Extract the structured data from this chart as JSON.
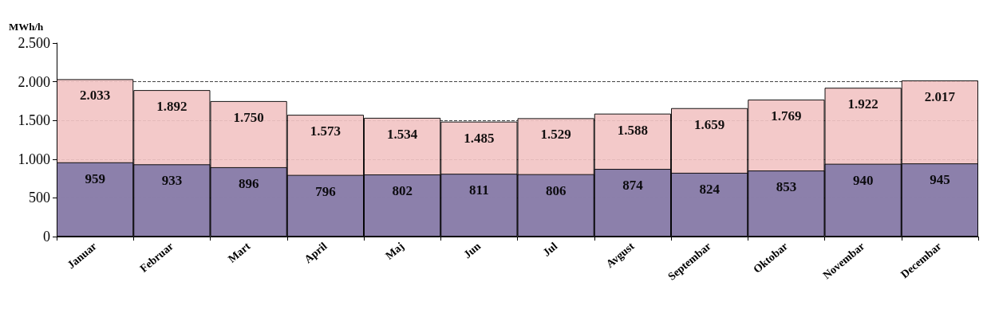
{
  "chart_data": {
    "type": "bar",
    "ylabel": "MWh/h",
    "categories": [
      "Januar",
      "Februar",
      "Mart",
      "April",
      "Maj",
      "Jun",
      "Jul",
      "Avgust",
      "Septembar",
      "Oktobar",
      "Novembar",
      "Decembar"
    ],
    "series": [
      {
        "color": "#f2c4c4",
        "values": [
          2033,
          1892,
          1750,
          1573,
          1534,
          1485,
          1529,
          1588,
          1659,
          1769,
          1922,
          2017
        ],
        "value_labels": [
          "2.033",
          "1.892",
          "1.750",
          "1.573",
          "1.534",
          "1.485",
          "1.529",
          "1.588",
          "1.659",
          "1.769",
          "1.922",
          "2.017"
        ]
      },
      {
        "color": "#8379a8",
        "values": [
          959,
          933,
          896,
          796,
          802,
          811,
          806,
          874,
          824,
          853,
          940,
          945
        ],
        "value_labels": [
          "959",
          "933",
          "896",
          "796",
          "802",
          "811",
          "806",
          "874",
          "824",
          "853",
          "940",
          "945"
        ]
      }
    ],
    "ylim": [
      0,
      2500
    ],
    "yticks": [
      {
        "value": 0,
        "label": "0"
      },
      {
        "value": 500,
        "label": "500"
      },
      {
        "value": 1000,
        "label": "1.000"
      },
      {
        "value": 1500,
        "label": "1.500"
      },
      {
        "value": 2000,
        "label": "2.000"
      },
      {
        "value": 2500,
        "label": "2.500"
      }
    ],
    "grid": "y"
  }
}
